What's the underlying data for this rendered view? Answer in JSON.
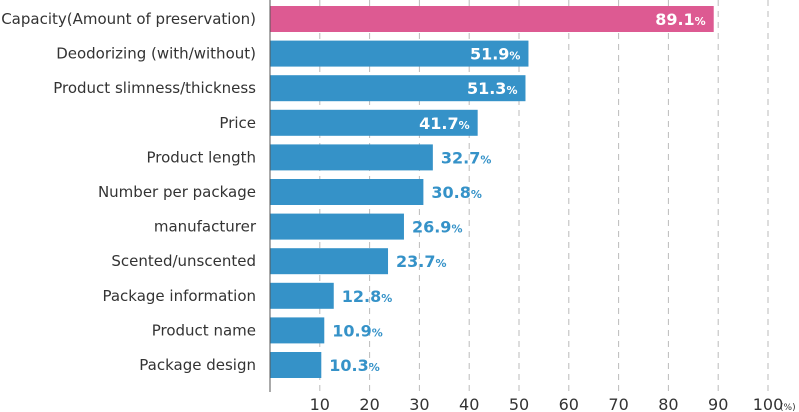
{
  "chart_data": {
    "type": "bar",
    "orientation": "horizontal",
    "categories": [
      "Capacity(Amount of preservation)",
      "Deodorizing (with/without)",
      "Product slimness/thickness",
      "Price",
      "Product length",
      "Number per package",
      "manufacturer",
      "Scented/unscented",
      "Package information",
      "Product name",
      "Package design"
    ],
    "values": [
      89.1,
      51.9,
      51.3,
      41.7,
      32.7,
      30.8,
      26.9,
      23.7,
      12.8,
      10.9,
      10.3
    ],
    "value_labels": [
      "89.1",
      "51.9",
      "51.3",
      "41.7",
      "32.7",
      "30.8",
      "26.9",
      "23.7",
      "12.8",
      "10.9",
      "10.3"
    ],
    "value_suffix": "%",
    "highlight_index": 0,
    "xlim": [
      0,
      100
    ],
    "x_ticks": [
      "10",
      "20",
      "30",
      "40",
      "50",
      "60",
      "70",
      "80",
      "90",
      "100"
    ],
    "x_unit": "(%)",
    "grid": "vertical dashed",
    "colors": {
      "bar": "#3592c8",
      "highlight": "#dd5a92",
      "label_inside": "#ffffff",
      "label_outside": "#3592c8",
      "grid": "#bbbbbb",
      "axis": "#555555"
    }
  }
}
